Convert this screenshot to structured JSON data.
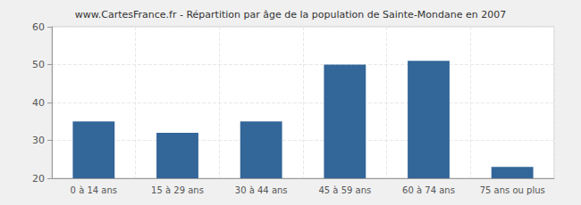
{
  "chart_data": {
    "type": "bar",
    "title": "www.CartesFrance.fr - Répartition par âge de la population de Sainte-Mondane en 2007",
    "categories": [
      "0 à 14 ans",
      "15 à 29 ans",
      "30 à 44 ans",
      "45 à 59 ans",
      "60 à 74 ans",
      "75 ans ou plus"
    ],
    "values": [
      35,
      32,
      35,
      50,
      51,
      23
    ],
    "color": "#336699",
    "ylim": [
      20,
      60
    ],
    "yticks": [
      20,
      30,
      40,
      50,
      60
    ],
    "grid": true
  }
}
